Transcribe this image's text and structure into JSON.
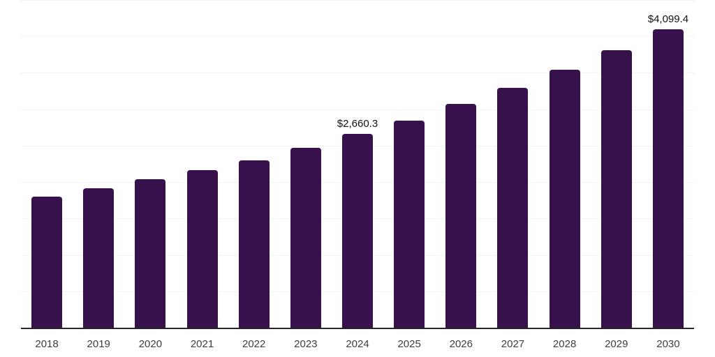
{
  "chart_data": {
    "type": "bar",
    "title": "",
    "xlabel": "",
    "ylabel": "",
    "categories": [
      "2018",
      "2019",
      "2020",
      "2021",
      "2022",
      "2023",
      "2024",
      "2025",
      "2026",
      "2027",
      "2028",
      "2029",
      "2030"
    ],
    "values": [
      1800,
      1915,
      2040,
      2165,
      2300,
      2470,
      2660.3,
      2845,
      3075,
      3295,
      3545,
      3810,
      4099.4
    ],
    "data_labels": {
      "2024": "$2,660.3",
      "2030": "$4,099.4"
    },
    "ylim": [
      0,
      4500
    ],
    "grid_step": 500,
    "grid": "horizontal",
    "legend": false,
    "y_tick_labels_visible": false,
    "colors": {
      "bar": "#36114B",
      "gridline": "#f3f3f3",
      "axis_line": "#262626",
      "tick_label": "#3d3d3d",
      "data_label": "#111111",
      "background": "#ffffff"
    }
  }
}
